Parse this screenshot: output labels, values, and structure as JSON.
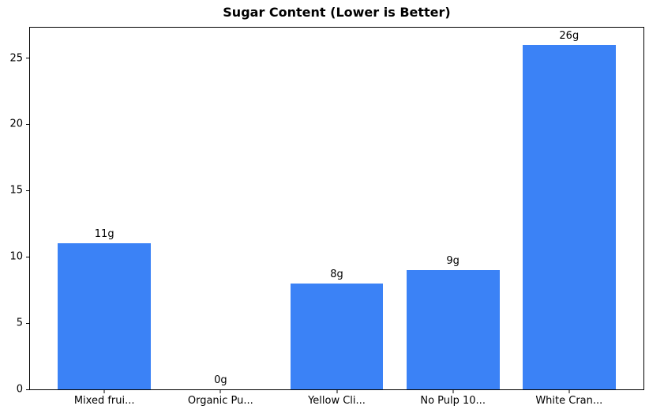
{
  "chart_data": {
    "type": "bar",
    "title": "Sugar Content (Lower is Better)",
    "categories": [
      "Mixed frui...",
      "Organic Pu...",
      "Yellow Cli...",
      "No Pulp 10...",
      "White Cran..."
    ],
    "values": [
      11,
      0,
      8,
      9,
      26
    ],
    "bar_value_labels": [
      "11g",
      "0g",
      "8g",
      "9g",
      "26g"
    ],
    "xlabel": "",
    "ylabel": "",
    "ylim": [
      0,
      27.3
    ],
    "yticks": [
      0,
      5,
      10,
      15,
      20,
      25
    ],
    "xlim": [
      -0.64,
      4.64
    ],
    "bar_width_units": 0.8,
    "grid": false,
    "legend": null,
    "colors": {
      "bar": "#3b82f6",
      "axis": "#000000",
      "text": "#000000",
      "background": "#ffffff"
    }
  }
}
